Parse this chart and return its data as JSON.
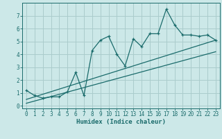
{
  "title": "",
  "xlabel": "Humidex (Indice chaleur)",
  "bg_color": "#cce8e8",
  "line_color": "#1a6b6b",
  "grid_color": "#aacccc",
  "x_data": [
    0,
    1,
    2,
    3,
    4,
    5,
    6,
    7,
    8,
    9,
    10,
    11,
    12,
    13,
    14,
    15,
    16,
    17,
    18,
    19,
    20,
    21,
    22,
    23
  ],
  "y_data": [
    1.2,
    0.8,
    0.6,
    0.7,
    0.7,
    1.1,
    2.6,
    0.8,
    4.3,
    5.1,
    5.4,
    4.0,
    3.1,
    5.2,
    4.6,
    5.6,
    5.6,
    7.5,
    6.3,
    5.5,
    5.5,
    5.4,
    5.5,
    5.1
  ],
  "trend1_x": [
    0,
    23
  ],
  "trend1_y": [
    0.5,
    5.1
  ],
  "trend2_x": [
    0,
    23
  ],
  "trend2_y": [
    0.2,
    4.2
  ],
  "xlim": [
    -0.5,
    23.5
  ],
  "ylim": [
    -0.2,
    8.0
  ],
  "yticks": [
    0,
    1,
    2,
    3,
    4,
    5,
    6,
    7
  ],
  "xticks": [
    0,
    1,
    2,
    3,
    4,
    5,
    6,
    7,
    8,
    9,
    10,
    11,
    12,
    13,
    14,
    15,
    16,
    17,
    18,
    19,
    20,
    21,
    22,
    23
  ],
  "tick_fontsize": 5.5,
  "xlabel_fontsize": 6.5
}
